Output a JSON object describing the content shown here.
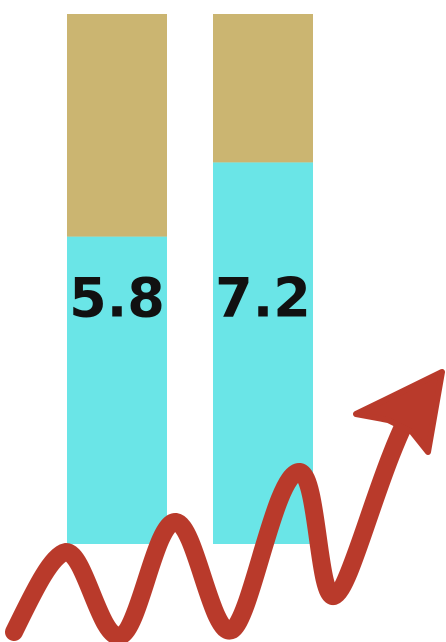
{
  "chart_data": {
    "type": "stacked-bar",
    "series": [
      {
        "color": "#6ae5e7",
        "values": [
          5.8,
          7.2
        ],
        "show_labels": true
      },
      {
        "color": "#cbb571",
        "values": [
          4.2,
          2.8
        ]
      }
    ],
    "ylim": [
      0,
      10
    ]
  }
}
